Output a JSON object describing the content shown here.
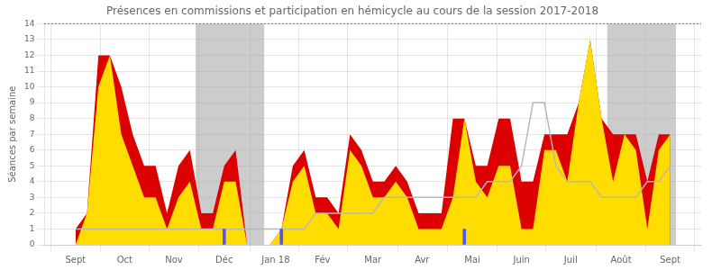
{
  "chart_data": {
    "type": "area",
    "title": "Présences en commissions et participation en hémicycle au cours de la session 2017-2018",
    "y_label": "Séances par semaine",
    "x": [
      0,
      1,
      2,
      3,
      4,
      5,
      6,
      7,
      8,
      9,
      10,
      11,
      12,
      13,
      14,
      15,
      16,
      17,
      18,
      19,
      20,
      21,
      22,
      23,
      24,
      25,
      26,
      27,
      28,
      29,
      30,
      31,
      32,
      33,
      34,
      35,
      36,
      37,
      38,
      39,
      40,
      41,
      42,
      43,
      44,
      45,
      46,
      47,
      48,
      49,
      50,
      51,
      52
    ],
    "xlim": [
      -0.5,
      52.5
    ],
    "xticks": [
      {
        "value": 0,
        "label": "Sept"
      },
      {
        "value": 4.3,
        "label": "Oct"
      },
      {
        "value": 8.6,
        "label": "Nov"
      },
      {
        "value": 13,
        "label": "Déc"
      },
      {
        "value": 17.5,
        "label": "Jan 18"
      },
      {
        "value": 21.6,
        "label": "Fév"
      },
      {
        "value": 26,
        "label": "Mar"
      },
      {
        "value": 30.3,
        "label": "Avr"
      },
      {
        "value": 34.7,
        "label": "Mai"
      },
      {
        "value": 39,
        "label": "Juin"
      },
      {
        "value": 43.3,
        "label": "Juil"
      },
      {
        "value": 47.7,
        "label": "Août"
      },
      {
        "value": 52,
        "label": "Sept"
      }
    ],
    "ylim": [
      0,
      14
    ],
    "yticks": [
      0,
      1,
      2,
      3,
      4,
      5,
      6,
      7,
      8,
      9,
      10,
      11,
      12,
      13,
      14
    ],
    "grid": true,
    "series": [
      {
        "type": "area",
        "color": "#dd0000",
        "values": [
          1,
          2,
          12,
          12,
          10,
          7,
          5,
          5,
          2,
          5,
          6,
          2,
          2,
          5,
          6,
          0,
          0,
          0,
          1,
          5,
          6,
          3,
          3,
          2,
          7,
          6,
          4,
          4,
          5,
          4,
          2,
          2,
          2,
          8,
          8,
          5,
          5,
          8,
          8,
          4,
          4,
          7,
          7,
          7,
          9,
          13,
          8,
          7,
          7,
          7,
          4,
          7,
          7
        ]
      },
      {
        "type": "area",
        "color": "#ffdd00",
        "values": [
          0,
          2,
          10,
          12,
          7,
          5,
          3,
          3,
          1,
          3,
          4,
          1,
          1,
          4,
          4,
          0,
          0,
          0,
          1,
          4,
          5,
          2,
          2,
          1,
          6,
          5,
          3,
          3,
          4,
          3,
          1,
          1,
          1,
          3,
          8,
          4,
          3,
          5,
          5,
          1,
          1,
          6,
          6,
          4,
          9,
          13,
          8,
          4,
          7,
          6,
          1,
          6,
          7
        ]
      },
      {
        "type": "line",
        "color": "#b8b8b8",
        "values": [
          1,
          1,
          1,
          1,
          1,
          1,
          1,
          1,
          1,
          1,
          1,
          1,
          1,
          1,
          1,
          1,
          1,
          1,
          1,
          1,
          1,
          2,
          2,
          2,
          2,
          2,
          2,
          3,
          3,
          3,
          3,
          3,
          3,
          3,
          3,
          3,
          4,
          4,
          4,
          5,
          9,
          9,
          5,
          4,
          4,
          4,
          3,
          3,
          3,
          3,
          4,
          4,
          5
        ]
      },
      {
        "type": "bar",
        "color": "#5555ee",
        "x": [
          13,
          18,
          34
        ],
        "values": [
          1,
          1,
          1
        ]
      }
    ],
    "gray_zones": {
      "color": "#aaaaaa",
      "ranges": [
        [
          11,
          16
        ],
        [
          47,
          52
        ]
      ]
    },
    "reference_line": {
      "value": 14,
      "color": "black",
      "line_style": "dotted"
    },
    "legend": false
  }
}
